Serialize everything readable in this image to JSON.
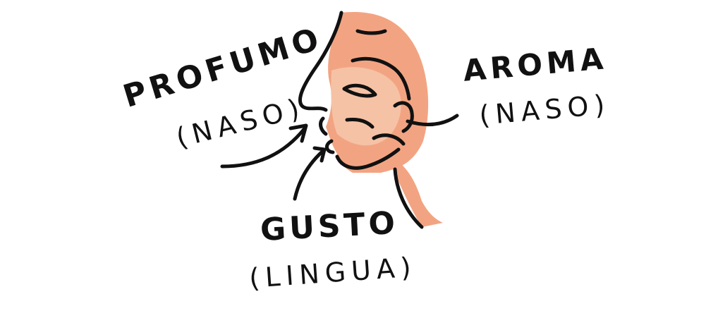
{
  "labels": {
    "profumo": {
      "word": "PROFUMO",
      "organ": "(NASO)"
    },
    "aroma": {
      "word": "AROMA",
      "organ": "(NASO)"
    },
    "gusto": {
      "word": "GUSTO",
      "organ": "(LINGUA)"
    }
  },
  "colors": {
    "skin": "#F2A482",
    "skin_light": "#F7C8AC",
    "ink": "#111111",
    "background": "#FFFFFF"
  }
}
